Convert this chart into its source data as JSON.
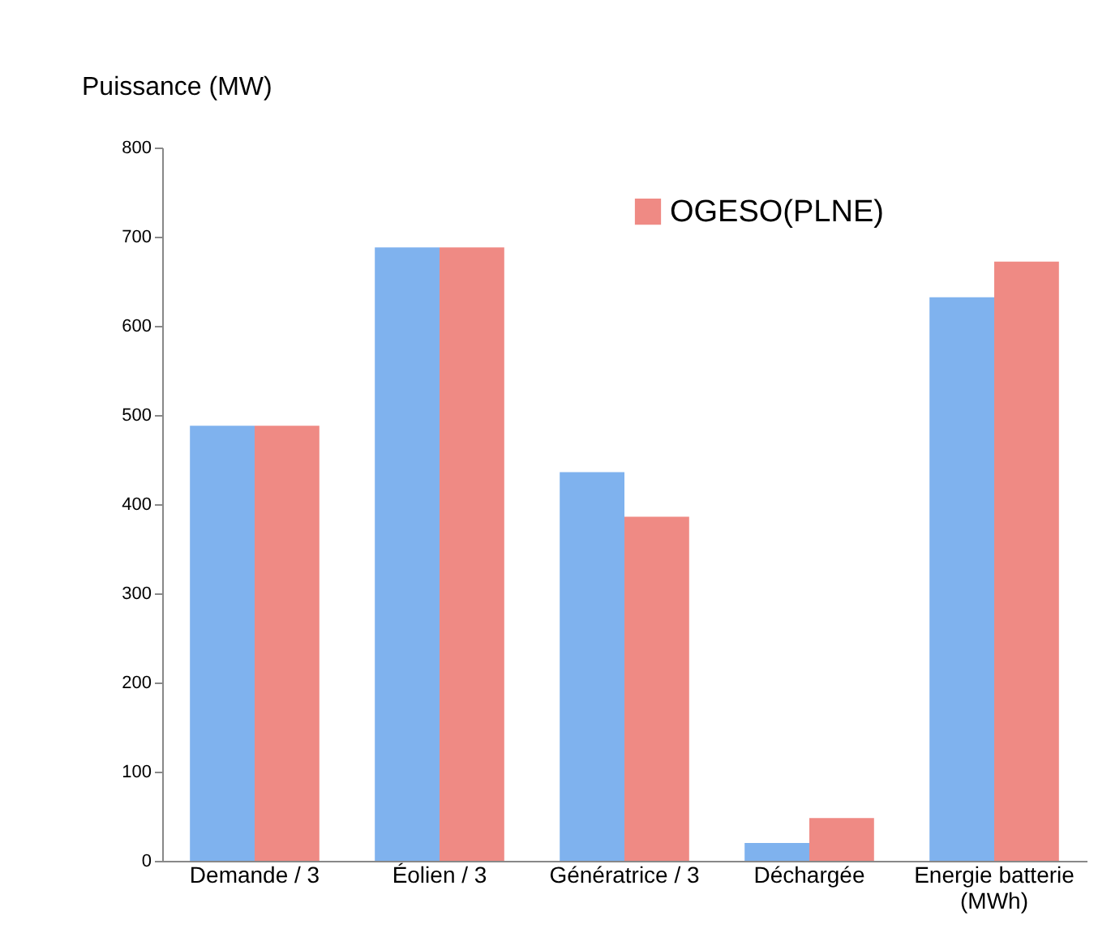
{
  "chart_data": {
    "type": "bar",
    "ylabel": "Puissance (MW)",
    "categories": [
      "Demande / 3",
      "Éolien / 3",
      "Génératrice / 3",
      "Déchargée",
      "Energie batterie (MWh)"
    ],
    "series": [
      {
        "color": "#7fb2ee",
        "values": [
          488,
          688,
          436,
          20,
          632
        ]
      },
      {
        "name": "OGESO(PLNE)",
        "color": "#ef8a84",
        "values": [
          488,
          688,
          386,
          48,
          672
        ]
      }
    ],
    "ylim": [
      0,
      800
    ],
    "yticks": [
      0,
      100,
      200,
      300,
      400,
      500,
      600,
      700,
      800
    ],
    "grid": false,
    "legend": "top right"
  }
}
